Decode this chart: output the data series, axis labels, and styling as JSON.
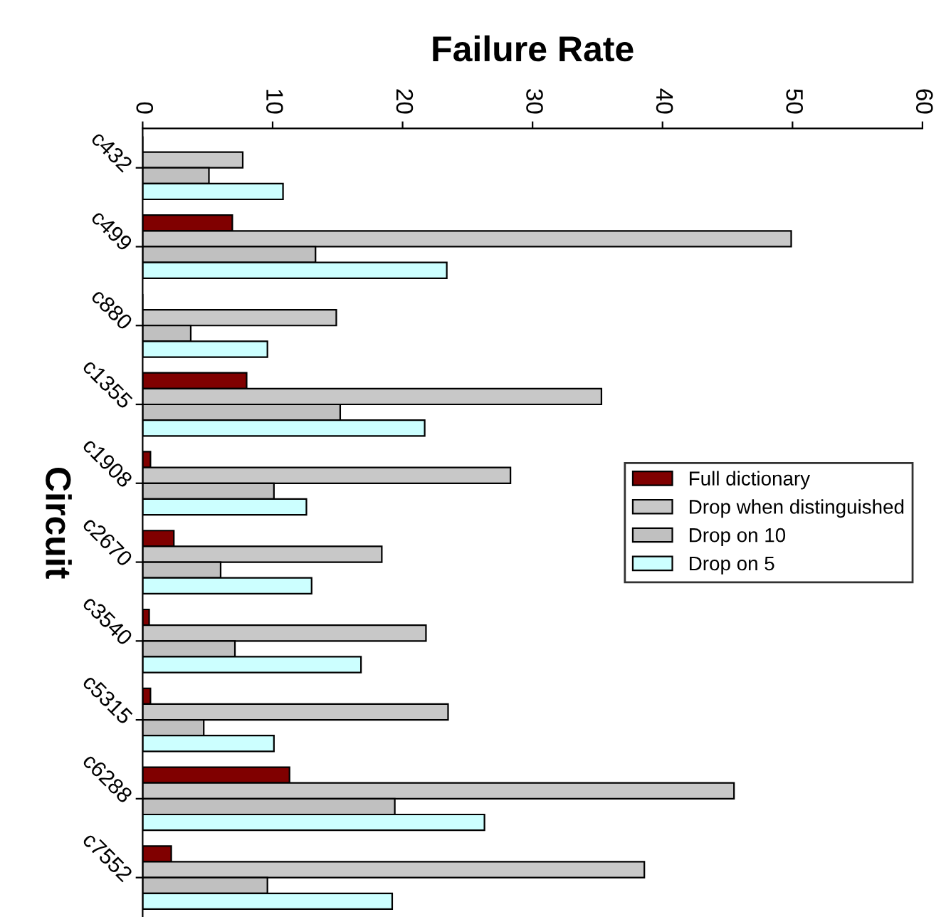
{
  "chart_data": {
    "type": "bar",
    "orientation": "horizontal",
    "title": "Failure Rate",
    "ylabel": "Circuit",
    "categories": [
      "c432",
      "c499",
      "c880",
      "c1355",
      "c1908",
      "c2670",
      "c3540",
      "c5315",
      "c6288",
      "c7552"
    ],
    "series": [
      {
        "name": "Full dictionary",
        "color": "#800000",
        "values": [
          0,
          6.9,
          0,
          8.0,
          0.6,
          2.4,
          0.5,
          0.6,
          11.3,
          2.2
        ]
      },
      {
        "name": "Drop when distinguished",
        "color": "#c8c8c8",
        "values": [
          7.7,
          49.9,
          14.9,
          35.3,
          28.3,
          18.4,
          21.8,
          23.5,
          45.5,
          38.6
        ]
      },
      {
        "name": "Drop on 10",
        "color": "#c0c0c0",
        "values": [
          5.1,
          13.3,
          3.7,
          15.2,
          10.1,
          6.0,
          7.1,
          4.7,
          19.4,
          9.6
        ]
      },
      {
        "name": "Drop on 5",
        "color": "#ccffff",
        "values": [
          10.8,
          23.4,
          9.6,
          21.7,
          12.6,
          13.0,
          16.8,
          10.1,
          26.3,
          19.2
        ]
      }
    ],
    "xlim": [
      0,
      60
    ],
    "xticks": [
      0,
      10,
      20,
      30,
      40,
      50,
      60
    ],
    "grid": false,
    "legend": "right"
  }
}
